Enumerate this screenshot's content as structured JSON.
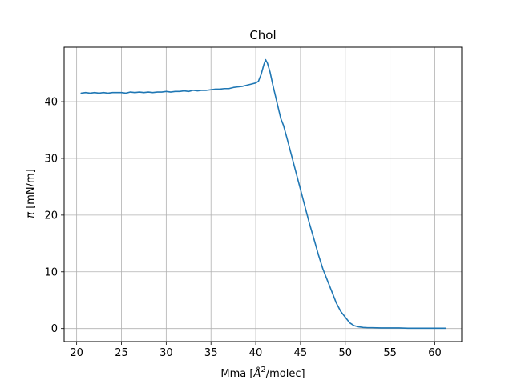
{
  "chart_data": {
    "type": "line",
    "title": "Chol",
    "xlabel_main": "Mma [",
    "xlabel_sym": "Å",
    "xlabel_sup": "2",
    "xlabel_tail": "/molec]",
    "ylabel_sym": "π",
    "ylabel_tail": " [mN/m]",
    "xlim": [
      18.6,
      63.0
    ],
    "ylim": [
      -2.3,
      49.6
    ],
    "xticks": [
      20,
      25,
      30,
      35,
      40,
      45,
      50,
      55,
      60
    ],
    "yticks": [
      0,
      10,
      20,
      30,
      40
    ],
    "grid": true,
    "line_color": "#1f77b4",
    "series": [
      {
        "x": [
          20.5,
          21.0,
          21.5,
          22.0,
          22.5,
          23.0,
          23.5,
          24.0,
          24.5,
          25.0,
          25.5,
          26.0,
          26.5,
          27.0,
          27.5,
          28.0,
          28.5,
          29.0,
          29.5,
          30.0,
          30.5,
          31.0,
          31.5,
          32.0,
          32.5,
          33.0,
          33.5,
          34.0,
          34.5,
          35.0,
          35.5,
          36.0,
          36.5,
          37.0,
          37.5,
          38.0,
          38.5,
          39.0,
          39.5,
          40.0,
          40.3,
          40.6,
          40.9,
          41.1,
          41.3,
          41.6,
          41.9,
          42.2,
          42.5,
          42.8,
          43.1,
          43.5,
          44.0,
          44.5,
          45.0,
          45.5,
          46.0,
          46.5,
          47.0,
          47.5,
          48.0,
          48.5,
          49.0,
          49.5,
          50.0,
          50.5,
          51.0,
          51.5,
          52.0,
          52.5,
          53.0,
          54.0,
          55.0,
          56.0,
          57.0,
          58.0,
          59.0,
          60.0,
          61.2
        ],
        "y": [
          41.5,
          41.6,
          41.5,
          41.6,
          41.5,
          41.6,
          41.5,
          41.6,
          41.6,
          41.6,
          41.5,
          41.7,
          41.6,
          41.7,
          41.6,
          41.7,
          41.6,
          41.7,
          41.7,
          41.8,
          41.7,
          41.8,
          41.8,
          41.9,
          41.8,
          42.0,
          41.9,
          42.0,
          42.0,
          42.1,
          42.2,
          42.2,
          42.3,
          42.3,
          42.5,
          42.6,
          42.7,
          42.9,
          43.1,
          43.3,
          43.6,
          44.8,
          46.5,
          47.4,
          46.8,
          45.2,
          43.0,
          41.0,
          39.0,
          37.0,
          35.8,
          33.5,
          30.5,
          27.5,
          24.5,
          21.5,
          18.5,
          15.8,
          13.0,
          10.5,
          8.5,
          6.5,
          4.5,
          3.0,
          2.0,
          1.0,
          0.5,
          0.3,
          0.2,
          0.15,
          0.15,
          0.1,
          0.1,
          0.1,
          0.05,
          0.05,
          0.05,
          0.05,
          0.05
        ]
      }
    ]
  }
}
